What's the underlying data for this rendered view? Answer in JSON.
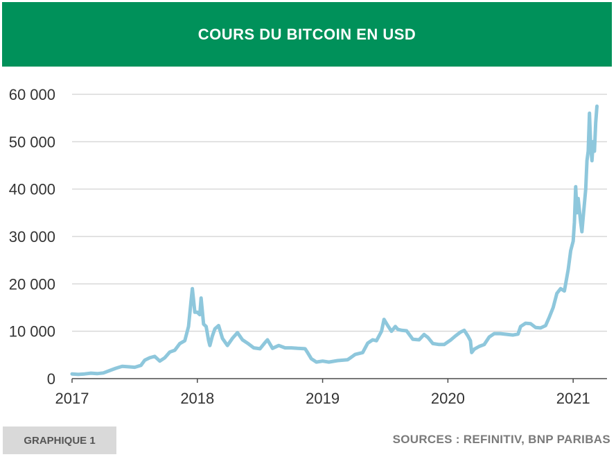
{
  "header": {
    "title": "COURS DU BITCOIN EN USD"
  },
  "footer": {
    "badge": "GRAPHIQUE 1",
    "sources": "SOURCES : REFINITIV, BNP PARIBAS"
  },
  "colors": {
    "header_bg": "#00915A",
    "line": "#8EC7DC",
    "grid": "#d9d9d9"
  },
  "chart_data": {
    "type": "line",
    "title": "COURS DU BITCOIN EN USD",
    "xlabel": "",
    "ylabel": "",
    "ylim": [
      0,
      60000
    ],
    "xlim": [
      2017.0,
      2021.27
    ],
    "y_ticks": [
      {
        "value": 0,
        "label": "0"
      },
      {
        "value": 10000,
        "label": "10 000"
      },
      {
        "value": 20000,
        "label": "20 000"
      },
      {
        "value": 30000,
        "label": "30 000"
      },
      {
        "value": 40000,
        "label": "40 000"
      },
      {
        "value": 50000,
        "label": "50 000"
      },
      {
        "value": 60000,
        "label": "60 000"
      }
    ],
    "x_ticks": [
      {
        "value": 2017,
        "label": "2017"
      },
      {
        "value": 2018,
        "label": "2018"
      },
      {
        "value": 2019,
        "label": "2019"
      },
      {
        "value": 2020,
        "label": "2020"
      },
      {
        "value": 2021,
        "label": "2021"
      }
    ],
    "grid": "horizontal",
    "series": [
      {
        "values": [
          [
            2017.0,
            1000
          ],
          [
            2017.05,
            900
          ],
          [
            2017.1,
            1000
          ],
          [
            2017.15,
            1150
          ],
          [
            2017.2,
            1050
          ],
          [
            2017.25,
            1200
          ],
          [
            2017.3,
            1700
          ],
          [
            2017.35,
            2200
          ],
          [
            2017.4,
            2600
          ],
          [
            2017.45,
            2500
          ],
          [
            2017.5,
            2400
          ],
          [
            2017.55,
            2800
          ],
          [
            2017.58,
            3900
          ],
          [
            2017.62,
            4400
          ],
          [
            2017.66,
            4700
          ],
          [
            2017.7,
            3700
          ],
          [
            2017.74,
            4400
          ],
          [
            2017.78,
            5600
          ],
          [
            2017.82,
            6000
          ],
          [
            2017.86,
            7400
          ],
          [
            2017.9,
            8000
          ],
          [
            2017.93,
            11000
          ],
          [
            2017.95,
            16500
          ],
          [
            2017.96,
            19000
          ],
          [
            2017.98,
            14000
          ],
          [
            2018.0,
            14000
          ],
          [
            2018.02,
            13500
          ],
          [
            2018.03,
            17000
          ],
          [
            2018.05,
            11500
          ],
          [
            2018.07,
            11000
          ],
          [
            2018.09,
            8000
          ],
          [
            2018.1,
            7000
          ],
          [
            2018.12,
            9000
          ],
          [
            2018.14,
            10500
          ],
          [
            2018.17,
            11200
          ],
          [
            2018.2,
            8500
          ],
          [
            2018.24,
            7000
          ],
          [
            2018.28,
            8500
          ],
          [
            2018.32,
            9700
          ],
          [
            2018.36,
            8200
          ],
          [
            2018.4,
            7500
          ],
          [
            2018.45,
            6500
          ],
          [
            2018.5,
            6300
          ],
          [
            2018.54,
            7600
          ],
          [
            2018.56,
            8200
          ],
          [
            2018.6,
            6400
          ],
          [
            2018.65,
            7000
          ],
          [
            2018.7,
            6500
          ],
          [
            2018.75,
            6500
          ],
          [
            2018.8,
            6400
          ],
          [
            2018.86,
            6300
          ],
          [
            2018.88,
            5500
          ],
          [
            2018.91,
            4200
          ],
          [
            2018.95,
            3500
          ],
          [
            2019.0,
            3700
          ],
          [
            2019.05,
            3500
          ],
          [
            2019.12,
            3800
          ],
          [
            2019.2,
            4000
          ],
          [
            2019.26,
            5100
          ],
          [
            2019.32,
            5500
          ],
          [
            2019.36,
            7500
          ],
          [
            2019.4,
            8200
          ],
          [
            2019.43,
            8000
          ],
          [
            2019.47,
            10000
          ],
          [
            2019.49,
            12500
          ],
          [
            2019.52,
            11200
          ],
          [
            2019.55,
            10000
          ],
          [
            2019.58,
            11000
          ],
          [
            2019.6,
            10400
          ],
          [
            2019.63,
            10200
          ],
          [
            2019.67,
            10100
          ],
          [
            2019.72,
            8300
          ],
          [
            2019.77,
            8200
          ],
          [
            2019.81,
            9300
          ],
          [
            2019.84,
            8700
          ],
          [
            2019.88,
            7400
          ],
          [
            2019.93,
            7200
          ],
          [
            2019.97,
            7200
          ],
          [
            2020.02,
            8100
          ],
          [
            2020.06,
            9000
          ],
          [
            2020.1,
            9800
          ],
          [
            2020.13,
            10200
          ],
          [
            2020.16,
            9000
          ],
          [
            2020.18,
            8000
          ],
          [
            2020.19,
            5500
          ],
          [
            2020.21,
            6200
          ],
          [
            2020.25,
            6800
          ],
          [
            2020.29,
            7200
          ],
          [
            2020.33,
            8800
          ],
          [
            2020.37,
            9500
          ],
          [
            2020.42,
            9500
          ],
          [
            2020.48,
            9300
          ],
          [
            2020.52,
            9200
          ],
          [
            2020.56,
            9400
          ],
          [
            2020.58,
            11000
          ],
          [
            2020.62,
            11700
          ],
          [
            2020.66,
            11600
          ],
          [
            2020.7,
            10800
          ],
          [
            2020.74,
            10700
          ],
          [
            2020.78,
            11200
          ],
          [
            2020.81,
            13000
          ],
          [
            2020.84,
            15000
          ],
          [
            2020.87,
            18000
          ],
          [
            2020.9,
            19000
          ],
          [
            2020.93,
            18500
          ],
          [
            2020.96,
            23000
          ],
          [
            2020.98,
            27000
          ],
          [
            2021.0,
            29000
          ],
          [
            2021.01,
            33000
          ],
          [
            2021.02,
            40500
          ],
          [
            2021.03,
            35000
          ],
          [
            2021.04,
            38000
          ],
          [
            2021.06,
            33000
          ],
          [
            2021.07,
            31000
          ],
          [
            2021.08,
            34000
          ],
          [
            2021.1,
            40000
          ],
          [
            2021.11,
            46000
          ],
          [
            2021.12,
            48000
          ],
          [
            2021.13,
            56000
          ],
          [
            2021.14,
            49000
          ],
          [
            2021.15,
            46000
          ],
          [
            2021.16,
            50000
          ],
          [
            2021.17,
            48000
          ],
          [
            2021.18,
            54000
          ],
          [
            2021.19,
            57500
          ]
        ]
      }
    ]
  }
}
